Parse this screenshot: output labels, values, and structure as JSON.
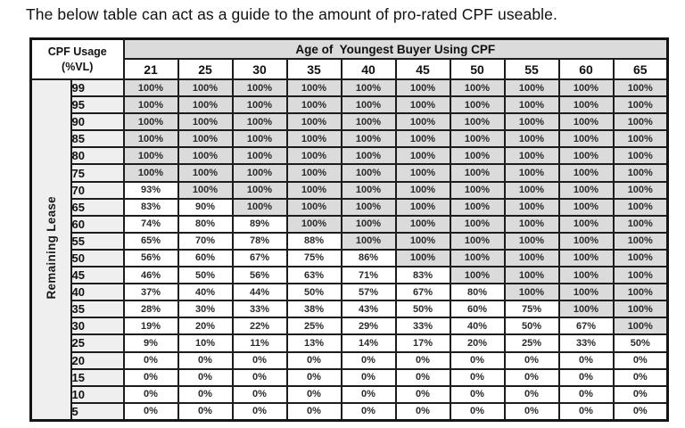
{
  "title": "The below table can act as a guide to the amount of pro-rated CPF useable.",
  "table": {
    "corner_header_line1": "CPF Usage",
    "corner_header_line2": "(%VL)",
    "age_header": "Age of  Youngest Buyer Using CPF",
    "age_columns": [
      "21",
      "25",
      "30",
      "35",
      "40",
      "45",
      "50",
      "55",
      "60",
      "65"
    ],
    "row_axis_label": "Remaining Lease",
    "rows": [
      {
        "lease": "99",
        "values": [
          "100%",
          "100%",
          "100%",
          "100%",
          "100%",
          "100%",
          "100%",
          "100%",
          "100%",
          "100%"
        ]
      },
      {
        "lease": "95",
        "values": [
          "100%",
          "100%",
          "100%",
          "100%",
          "100%",
          "100%",
          "100%",
          "100%",
          "100%",
          "100%"
        ]
      },
      {
        "lease": "90",
        "values": [
          "100%",
          "100%",
          "100%",
          "100%",
          "100%",
          "100%",
          "100%",
          "100%",
          "100%",
          "100%"
        ]
      },
      {
        "lease": "85",
        "values": [
          "100%",
          "100%",
          "100%",
          "100%",
          "100%",
          "100%",
          "100%",
          "100%",
          "100%",
          "100%"
        ]
      },
      {
        "lease": "80",
        "values": [
          "100%",
          "100%",
          "100%",
          "100%",
          "100%",
          "100%",
          "100%",
          "100%",
          "100%",
          "100%"
        ]
      },
      {
        "lease": "75",
        "values": [
          "100%",
          "100%",
          "100%",
          "100%",
          "100%",
          "100%",
          "100%",
          "100%",
          "100%",
          "100%"
        ]
      },
      {
        "lease": "70",
        "values": [
          "93%",
          "100%",
          "100%",
          "100%",
          "100%",
          "100%",
          "100%",
          "100%",
          "100%",
          "100%"
        ]
      },
      {
        "lease": "65",
        "values": [
          "83%",
          "90%",
          "100%",
          "100%",
          "100%",
          "100%",
          "100%",
          "100%",
          "100%",
          "100%"
        ]
      },
      {
        "lease": "60",
        "values": [
          "74%",
          "80%",
          "89%",
          "100%",
          "100%",
          "100%",
          "100%",
          "100%",
          "100%",
          "100%"
        ]
      },
      {
        "lease": "55",
        "values": [
          "65%",
          "70%",
          "78%",
          "88%",
          "100%",
          "100%",
          "100%",
          "100%",
          "100%",
          "100%"
        ]
      },
      {
        "lease": "50",
        "values": [
          "56%",
          "60%",
          "67%",
          "75%",
          "86%",
          "100%",
          "100%",
          "100%",
          "100%",
          "100%"
        ]
      },
      {
        "lease": "45",
        "values": [
          "46%",
          "50%",
          "56%",
          "63%",
          "71%",
          "83%",
          "100%",
          "100%",
          "100%",
          "100%"
        ]
      },
      {
        "lease": "40",
        "values": [
          "37%",
          "40%",
          "44%",
          "50%",
          "57%",
          "67%",
          "80%",
          "100%",
          "100%",
          "100%"
        ]
      },
      {
        "lease": "35",
        "values": [
          "28%",
          "30%",
          "33%",
          "38%",
          "43%",
          "50%",
          "60%",
          "75%",
          "100%",
          "100%"
        ]
      },
      {
        "lease": "30",
        "values": [
          "19%",
          "20%",
          "22%",
          "25%",
          "29%",
          "33%",
          "40%",
          "50%",
          "67%",
          "100%"
        ]
      },
      {
        "lease": "25",
        "values": [
          "9%",
          "10%",
          "11%",
          "13%",
          "14%",
          "17%",
          "20%",
          "25%",
          "33%",
          "50%"
        ]
      },
      {
        "lease": "20",
        "values": [
          "0%",
          "0%",
          "0%",
          "0%",
          "0%",
          "0%",
          "0%",
          "0%",
          "0%",
          "0%"
        ]
      },
      {
        "lease": "15",
        "values": [
          "0%",
          "0%",
          "0%",
          "0%",
          "0%",
          "0%",
          "0%",
          "0%",
          "0%",
          "0%"
        ]
      },
      {
        "lease": "10",
        "values": [
          "0%",
          "0%",
          "0%",
          "0%",
          "0%",
          "0%",
          "0%",
          "0%",
          "0%",
          "0%"
        ]
      },
      {
        "lease": "5",
        "values": [
          "0%",
          "0%",
          "0%",
          "0%",
          "0%",
          "0%",
          "0%",
          "0%",
          "0%",
          "0%"
        ]
      }
    ],
    "colors": {
      "full_cell_bg": "#dbdbdb",
      "partial_cell_bg": "#ffffff",
      "header_bg": "#dbdbdb",
      "label_bg": "#efefef",
      "border": "#1c1c1c"
    }
  }
}
